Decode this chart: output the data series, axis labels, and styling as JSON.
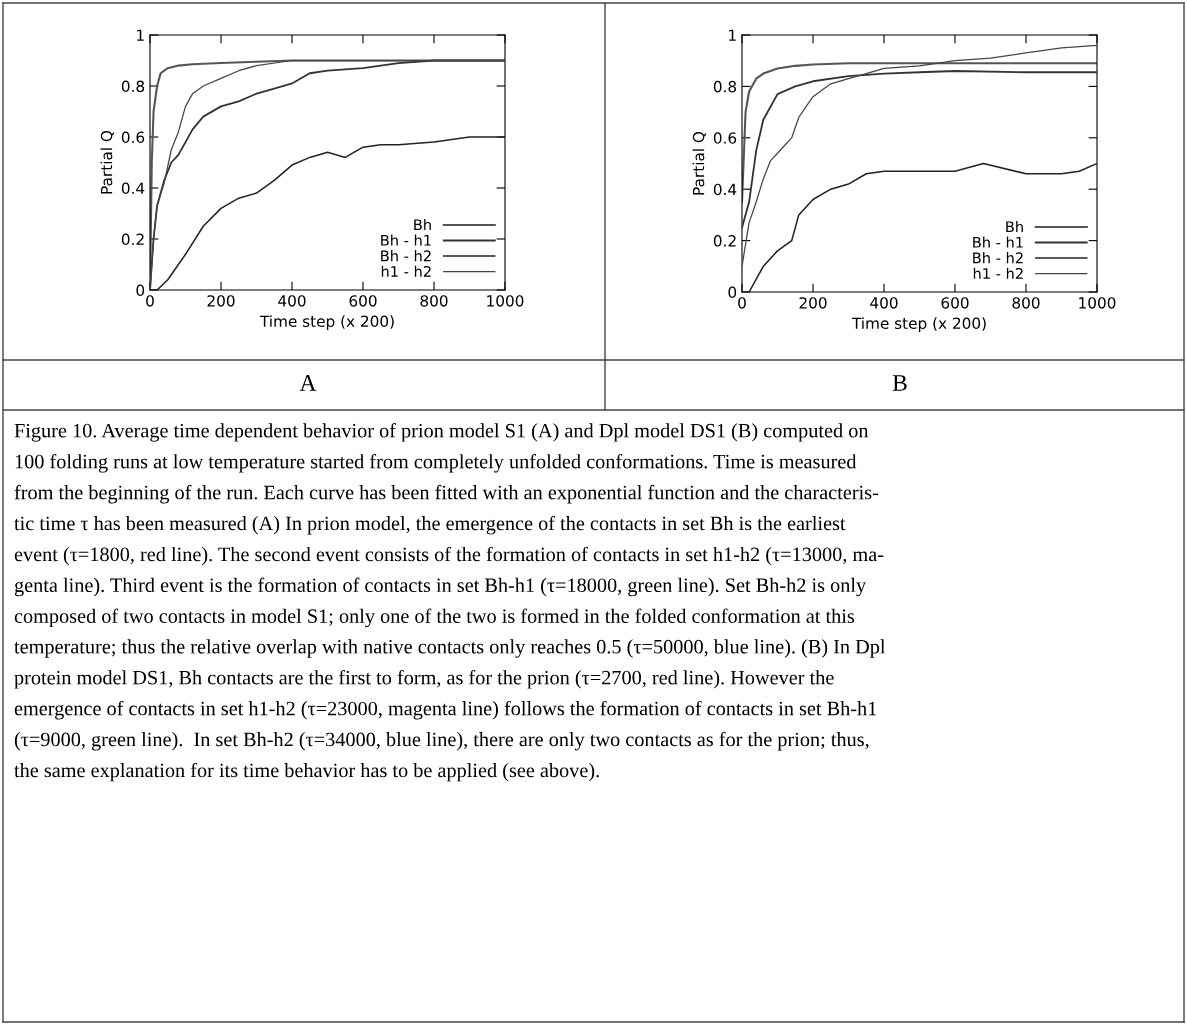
{
  "chart_data": [
    {
      "type": "line",
      "xlabel": "Time step (x 200)",
      "ylabel": "Partial Q",
      "xlim": [
        0,
        1000
      ],
      "ylim": [
        0,
        1
      ],
      "xticks": [
        0,
        200,
        400,
        600,
        800,
        1000
      ],
      "yticks": [
        0,
        0.2,
        0.4,
        0.6,
        0.8,
        1
      ],
      "grid": false,
      "legend": "bottom right",
      "marker": "none",
      "line_style": "solid",
      "annotations": [
        "A",
        "Figure 10. Average time dependent behavior of prion model S1 (A) and Dpl model DS1 (B) computed on\n100 folding runs at low temperature started from completely unfolded conformations. Time is measured\nfrom the beginning of the run. Each curve has been fitted with an exponential function and the characteris-\ntic time τ has been measured (A) In prion model, the emergence of the contacts in set Bh is the earliest\nevent (τ=1800, red line). The second event consists of the formation of contacts in set h1-h2 (τ=13000, ma-\ngenta line). Third event is the formation of contacts in set Bh-h1 (τ=18000, green line). Set Bh-h2 is only\ncomposed of two contacts in model S1; only one of the two is formed in the folded conformation at this\ntemperature; thus the relative overlap with native contacts only reaches 0.5 (τ=50000, blue line). (B) In Dpl\nprotein model DS1, Bh contacts are the first to form, as for the prion (τ=2700, red line). However the\nemergence of contacts in set h1-h2 (τ=23000, magenta line) follows the formation of contacts in set Bh-h1\n(τ=9000, green line).  In set Bh-h2 (τ=34000, blue line), there are only two contacts as for the prion; thus,\nthe same explanation for its time behavior has to be applied (see above)."
      ],
      "series": [
        {
          "name": "Bh",
          "color": "#555555",
          "x": [
            0,
            5,
            10,
            20,
            30,
            50,
            80,
            120,
            200,
            300,
            400,
            500,
            600,
            700,
            800,
            900,
            1000
          ],
          "values": [
            0,
            0.5,
            0.7,
            0.8,
            0.85,
            0.87,
            0.88,
            0.885,
            0.89,
            0.895,
            0.9,
            0.9,
            0.9,
            0.9,
            0.9,
            0.9,
            0.9
          ]
        },
        {
          "name": "Bh - h1",
          "color": "#333333",
          "x": [
            0,
            10,
            20,
            40,
            60,
            80,
            100,
            120,
            150,
            200,
            250,
            300,
            350,
            400,
            450,
            500,
            600,
            700,
            800,
            1000
          ],
          "values": [
            0,
            0.2,
            0.33,
            0.43,
            0.5,
            0.53,
            0.58,
            0.63,
            0.68,
            0.72,
            0.74,
            0.77,
            0.79,
            0.81,
            0.85,
            0.86,
            0.87,
            0.89,
            0.9,
            0.9
          ]
        },
        {
          "name": "Bh - h2",
          "color": "#222222",
          "x": [
            0,
            20,
            50,
            100,
            150,
            200,
            250,
            300,
            350,
            400,
            450,
            500,
            550,
            600,
            650,
            700,
            800,
            900,
            1000
          ],
          "values": [
            0,
            0,
            0.04,
            0.14,
            0.25,
            0.32,
            0.36,
            0.38,
            0.43,
            0.49,
            0.52,
            0.54,
            0.52,
            0.56,
            0.57,
            0.57,
            0.58,
            0.6,
            0.6
          ]
        },
        {
          "name": "h1 - h2",
          "color": "#444444",
          "x": [
            0,
            10,
            20,
            40,
            60,
            80,
            100,
            120,
            150,
            200,
            250,
            300,
            400,
            500,
            600,
            800,
            1000
          ],
          "values": [
            0,
            0.2,
            0.33,
            0.42,
            0.55,
            0.62,
            0.72,
            0.77,
            0.8,
            0.83,
            0.86,
            0.88,
            0.9,
            0.9,
            0.9,
            0.9,
            0.9
          ]
        }
      ]
    },
    {
      "type": "line",
      "xlabel": "Time step (x 200)",
      "ylabel": "Partial Q",
      "xlim": [
        0,
        1000
      ],
      "ylim": [
        0,
        1
      ],
      "xticks": [
        0,
        200,
        400,
        600,
        800,
        1000
      ],
      "yticks": [
        0,
        0.2,
        0.4,
        0.6,
        0.8,
        1
      ],
      "grid": false,
      "legend": "bottom right",
      "marker": "none",
      "line_style": "solid",
      "annotations": [
        "B"
      ],
      "series": [
        {
          "name": "Bh",
          "color": "#555555",
          "x": [
            0,
            10,
            20,
            40,
            60,
            100,
            150,
            200,
            300,
            400,
            600,
            800,
            1000
          ],
          "values": [
            0.35,
            0.7,
            0.78,
            0.83,
            0.85,
            0.87,
            0.88,
            0.885,
            0.89,
            0.89,
            0.89,
            0.89,
            0.89
          ]
        },
        {
          "name": "Bh - h1",
          "color": "#333333",
          "x": [
            0,
            20,
            40,
            60,
            80,
            100,
            150,
            200,
            300,
            400,
            500,
            600,
            800,
            1000
          ],
          "values": [
            0.25,
            0.35,
            0.55,
            0.67,
            0.72,
            0.77,
            0.8,
            0.82,
            0.84,
            0.85,
            0.855,
            0.86,
            0.855,
            0.855
          ]
        },
        {
          "name": "Bh - h2",
          "color": "#222222",
          "x": [
            0,
            20,
            40,
            60,
            100,
            140,
            160,
            200,
            250,
            300,
            350,
            400,
            500,
            600,
            680,
            800,
            900,
            950,
            1000
          ],
          "values": [
            0,
            0,
            0.05,
            0.1,
            0.16,
            0.2,
            0.3,
            0.36,
            0.4,
            0.42,
            0.46,
            0.47,
            0.47,
            0.47,
            0.5,
            0.46,
            0.46,
            0.47,
            0.5
          ]
        },
        {
          "name": "h1 - h2",
          "color": "#444444",
          "x": [
            0,
            20,
            40,
            60,
            80,
            100,
            120,
            140,
            160,
            180,
            200,
            250,
            300,
            350,
            400,
            500,
            600,
            700,
            800,
            900,
            1000
          ],
          "values": [
            0.1,
            0.27,
            0.35,
            0.44,
            0.51,
            0.54,
            0.57,
            0.6,
            0.68,
            0.72,
            0.76,
            0.81,
            0.83,
            0.85,
            0.87,
            0.88,
            0.9,
            0.91,
            0.93,
            0.95,
            0.96
          ]
        }
      ]
    }
  ]
}
